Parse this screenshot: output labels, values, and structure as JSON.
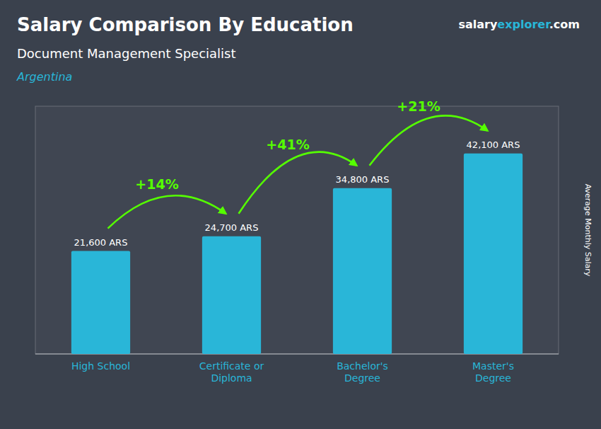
{
  "chart_data": {
    "type": "bar",
    "title": "Salary Comparison By Education",
    "subtitle": [
      "Document Management Specialist",
      "Argentina"
    ],
    "logo": [
      "salary",
      "explorer",
      ".com"
    ],
    "y_label": "Average Monthly Salary",
    "categories": [
      "High School",
      "Certificate or\nDiploma",
      "Bachelor's\nDegree",
      "Master's\nDegree"
    ],
    "values": [
      21600,
      24700,
      34800,
      42100
    ],
    "value_labels": [
      "21,600 ARS",
      "24,700 ARS",
      "34,800 ARS",
      "42,100 ARS"
    ],
    "data_labels": true,
    "annotations": [
      "+14%",
      "+41%",
      "+21%"
    ],
    "color": "#29b6d8",
    "ylim": [
      0,
      52000
    ],
    "yticks": [],
    "tick_labels": "x",
    "grid": false
  }
}
